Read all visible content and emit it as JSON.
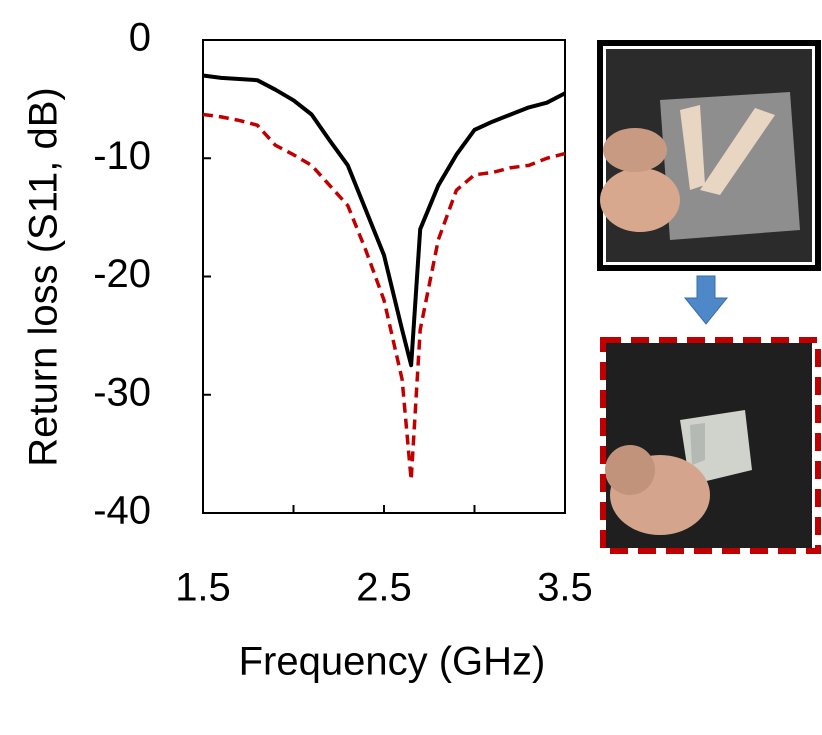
{
  "chart_data": {
    "type": "line",
    "x_label": "Frequency (GHz)",
    "y_label": "Return loss (S11, dB)",
    "x": [
      1.5,
      1.6,
      1.7,
      1.8,
      1.9,
      2.0,
      2.1,
      2.2,
      2.3,
      2.4,
      2.5,
      2.6,
      2.65,
      2.7,
      2.8,
      2.9,
      3.0,
      3.1,
      3.2,
      3.3,
      3.4,
      3.5
    ],
    "series": [
      {
        "color": "#000000",
        "line_style": "solid",
        "values": [
          -3.0,
          -3.2,
          -3.3,
          -3.4,
          -4.2,
          -5.1,
          -6.3,
          -8.5,
          -10.6,
          -14.4,
          -18.2,
          -24.5,
          -27.5,
          -16.0,
          -12.3,
          -9.7,
          -7.6,
          -6.9,
          -6.3,
          -5.7,
          -5.3,
          -4.5
        ]
      },
      {
        "color": "#c00000",
        "line_style": "dashed",
        "values": [
          -6.3,
          -6.5,
          -6.8,
          -7.2,
          -8.9,
          -9.7,
          -10.6,
          -12.3,
          -14.0,
          -17.8,
          -22.0,
          -28.7,
          -37.2,
          -24.5,
          -16.9,
          -12.7,
          -11.4,
          -11.2,
          -10.8,
          -10.6,
          -10.0,
          -9.6
        ]
      }
    ],
    "xlim": [
      1.5,
      3.5
    ],
    "xticks": [
      1.5,
      2.5,
      3.5
    ],
    "x_minor_ticks": [
      2,
      3
    ],
    "ylim": [
      -40,
      0
    ],
    "yticks": [
      0,
      -10,
      -20,
      -30,
      -40
    ],
    "grid": false
  }
}
